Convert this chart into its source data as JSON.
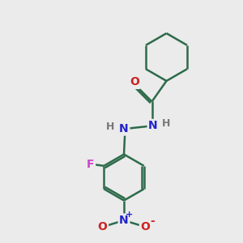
{
  "background_color": "#ebebeb",
  "bond_color": "#2d6b4a",
  "N_color": "#2222cc",
  "O_color": "#cc2222",
  "F_color": "#cc44cc",
  "H_color": "#777777",
  "line_width": 1.8,
  "figsize": [
    3.0,
    3.0
  ],
  "dpi": 100,
  "xlim": [
    0,
    10
  ],
  "ylim": [
    0,
    10
  ]
}
